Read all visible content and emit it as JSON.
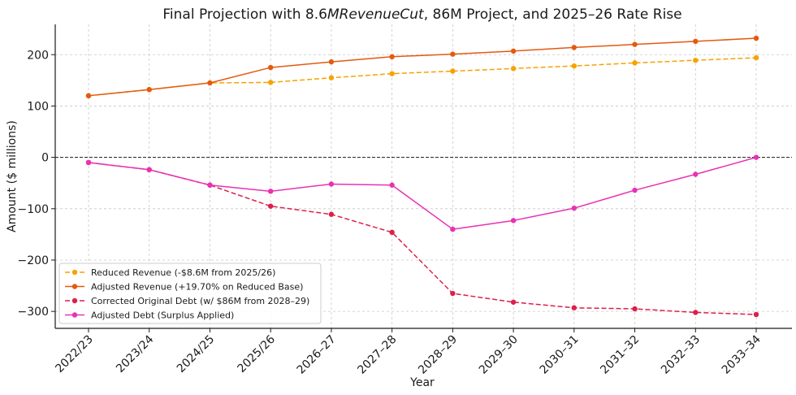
{
  "chart_data": {
    "type": "line",
    "title": {
      "part1": "Final Projection with 8.6",
      "part2": "MRevenueCut",
      "part3": ", 86M Project, and 2025–26 Rate Rise"
    },
    "xlabel": "Year",
    "ylabel": "Amount ($ millions)",
    "ylim": [
      -333,
      259
    ],
    "yticks": [
      {
        "value": 200,
        "label": "200"
      },
      {
        "value": 100,
        "label": "100"
      },
      {
        "value": 0,
        "label": "0"
      },
      {
        "value": -100,
        "label": "−100"
      },
      {
        "value": -200,
        "label": "−200"
      },
      {
        "value": -300,
        "label": "−300"
      }
    ],
    "categories": [
      "2022/23",
      "2023/24",
      "2024/25",
      "2025/26",
      "2026–27",
      "2027–28",
      "2028–29",
      "2029–30",
      "2030–31",
      "2031–32",
      "2032–33",
      "2033–34"
    ],
    "grid": true,
    "zero_line": true,
    "legend_position": "lower-left",
    "series": [
      {
        "name": "Reduced Revenue (-$8.6M from 2025/26)",
        "color": "#f5a300",
        "dashed": true,
        "values": [
          120,
          132,
          145,
          146,
          155,
          163,
          168,
          173,
          178,
          184,
          189,
          194
        ]
      },
      {
        "name": "Adjusted Revenue (+19.70% on Reduced Base)",
        "color": "#e35a10",
        "dashed": false,
        "values": [
          120,
          132,
          145,
          175,
          186,
          196,
          201,
          207,
          214,
          220,
          226,
          232
        ]
      },
      {
        "name": "Corrected Original Debt (w/ $86M from 2028–29)",
        "color": "#dc1f4b",
        "dashed": true,
        "values": [
          -10,
          -24,
          -54,
          -95,
          -111,
          -146,
          -265,
          -282,
          -293,
          -295,
          -302,
          -306
        ]
      },
      {
        "name": "Adjusted Debt (Surplus Applied)",
        "color": "#e832b4",
        "dashed": false,
        "values": [
          -10,
          -24,
          -54,
          -66,
          -52,
          -54,
          -140,
          -123,
          -99,
          -64,
          -33,
          0
        ]
      }
    ]
  }
}
